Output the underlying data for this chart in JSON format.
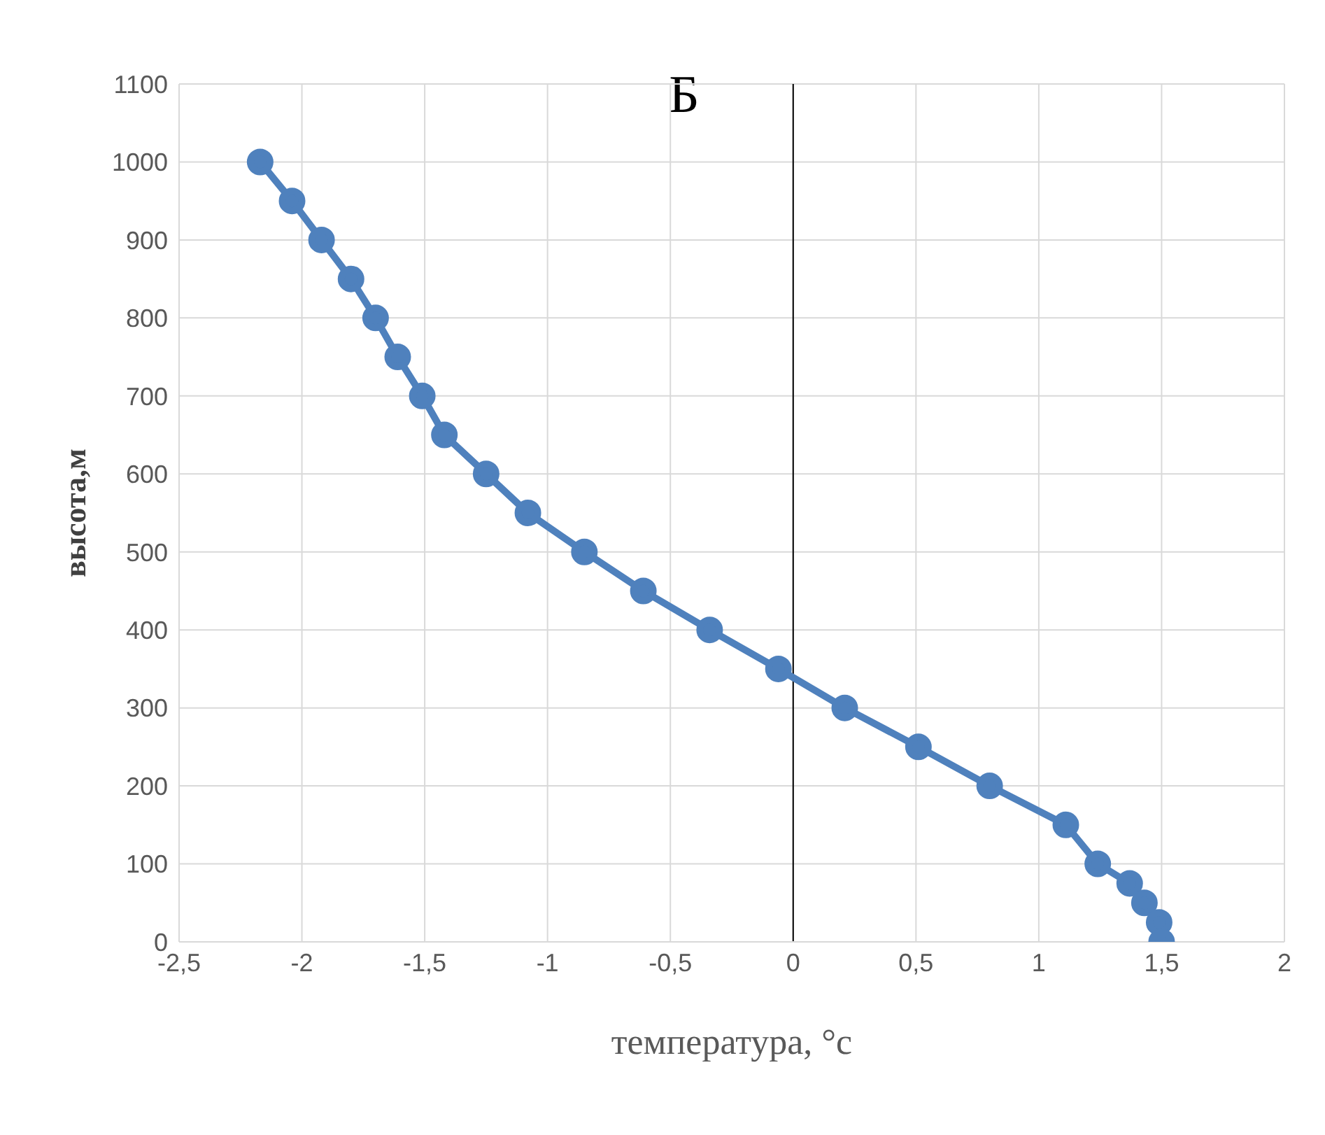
{
  "chart_data": {
    "type": "line",
    "title": "Б",
    "xlabel": "температура, °с",
    "ylabel": "высота,м",
    "x": [
      -2.17,
      -2.04,
      -1.92,
      -1.8,
      -1.7,
      -1.61,
      -1.51,
      -1.42,
      -1.25,
      -1.08,
      -0.85,
      -0.61,
      -0.34,
      -0.06,
      0.21,
      0.51,
      0.8,
      1.11,
      1.24,
      1.37,
      1.43,
      1.49,
      1.5
    ],
    "series": [
      {
        "color": "#4f81bd",
        "values": [
          1000,
          950,
          900,
          850,
          800,
          750,
          700,
          650,
          600,
          550,
          500,
          450,
          400,
          350,
          300,
          250,
          200,
          150,
          100,
          75,
          50,
          25,
          0
        ]
      }
    ],
    "xlim": [
      -2.5,
      2
    ],
    "xticks": [
      {
        "value": -2.5,
        "label": "-2,5"
      },
      -2,
      {
        "value": -1.5,
        "label": "-1,5"
      },
      -1,
      {
        "value": -0.5,
        "label": "-0,5"
      },
      0,
      {
        "value": 0.5,
        "label": "0,5"
      },
      1,
      {
        "value": 1.5,
        "label": "1,5"
      },
      2
    ],
    "ylim": [
      0,
      1100
    ],
    "yticks": [
      0,
      100,
      200,
      300,
      400,
      500,
      600,
      700,
      800,
      900,
      1000,
      1100
    ],
    "grid": true,
    "marker": "circle",
    "line_style": "solid",
    "ref_lines": [
      {
        "axis": "x",
        "value": 0,
        "color": "#000000"
      }
    ]
  }
}
